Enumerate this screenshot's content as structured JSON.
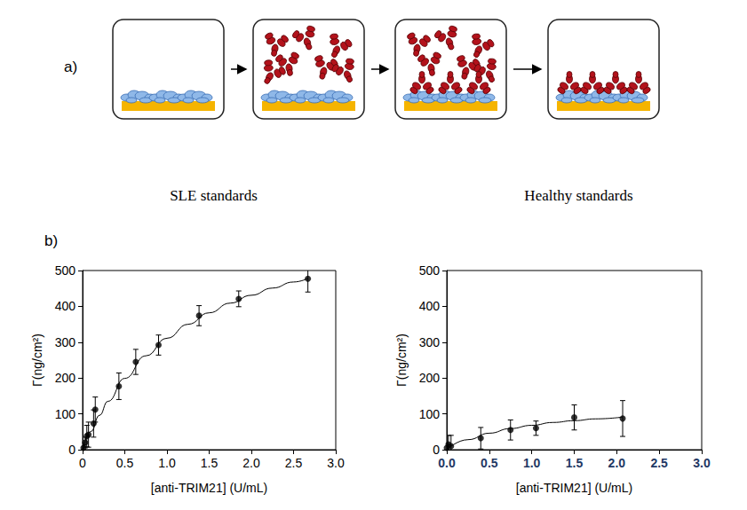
{
  "panel_labels": [
    "a)",
    "b)"
  ],
  "chart_data": [
    {
      "type": "scatter",
      "title": "SLE standards",
      "x_label": "[anti-TRIM21] (U/mL)",
      "y_label": "Γ(ng/cm²)",
      "xlim": [
        0,
        3
      ],
      "ylim": [
        0,
        500
      ],
      "xticks": [
        0,
        0.5,
        {
          "value": 1,
          "label": "1.0"
        },
        1.5,
        {
          "value": 2,
          "label": "2.0"
        },
        2.5,
        {
          "value": 3,
          "label": "3.0"
        }
      ],
      "yticks": [
        0,
        100,
        200,
        300,
        400,
        500
      ],
      "grid": false,
      "series": [
        {
          "type": "scatter",
          "marker": "circle",
          "color": "#000000",
          "x": [
            0.01,
            0.03,
            0.05,
            0.07,
            0.13,
            0.15,
            0.43,
            0.63,
            0.9,
            1.38,
            1.85,
            2.67
          ],
          "values": [
            5,
            20,
            38,
            42,
            73,
            112,
            177,
            245,
            292,
            374,
            421,
            477
          ],
          "errors": [
            8,
            15,
            30,
            35,
            38,
            35,
            37,
            35,
            28,
            28,
            22,
            37
          ]
        },
        {
          "type": "line",
          "line_style": "solid",
          "color": "#000000",
          "x": [
            0,
            0.1,
            0.2,
            0.3,
            0.5,
            0.75,
            1.0,
            1.25,
            1.5,
            1.75,
            2.0,
            2.25,
            2.5,
            2.67
          ],
          "values": [
            0,
            51,
            96,
            135,
            199,
            262,
            311,
            350,
            382,
            409,
            431,
            451,
            468,
            478
          ]
        }
      ]
    },
    {
      "type": "scatter",
      "title": "Healthy standards",
      "x_label": "[anti-TRIM21] (U/mL)",
      "y_label": "Γ(ng/cm²)",
      "xlim": [
        0,
        3
      ],
      "ylim": [
        0,
        500
      ],
      "xticks": [
        {
          "value": 0,
          "label": "0.0"
        },
        0.5,
        {
          "value": 1,
          "label": "1.0"
        },
        1.5,
        {
          "value": 2,
          "label": "2.0"
        },
        2.5,
        {
          "value": 3,
          "label": "3.0"
        }
      ],
      "yticks": [
        0,
        100,
        200,
        300,
        400,
        500
      ],
      "grid": false,
      "series": [
        {
          "type": "scatter",
          "marker": "circle",
          "color": "#000000",
          "x": [
            0.0,
            0.02,
            0.05,
            0.4,
            0.75,
            1.05,
            1.5,
            2.07
          ],
          "values": [
            5,
            15,
            10,
            32,
            55,
            60,
            90,
            87
          ],
          "errors": [
            10,
            25,
            30,
            30,
            28,
            20,
            35,
            50
          ]
        },
        {
          "type": "line",
          "line_style": "solid",
          "color": "#000000",
          "x": [
            0,
            0.25,
            0.5,
            0.75,
            1.0,
            1.25,
            1.5,
            1.75,
            2.07
          ],
          "values": [
            0,
            28,
            46,
            59,
            68,
            76,
            81,
            86,
            91
          ]
        }
      ]
    }
  ]
}
